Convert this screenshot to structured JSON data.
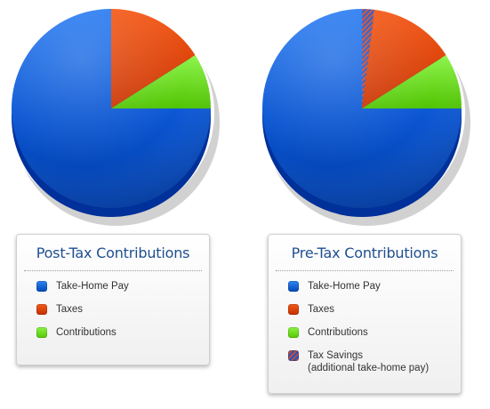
{
  "chart_data": [
    {
      "type": "pie",
      "title": "Post-Tax Contributions",
      "categories": [
        "Take-Home Pay",
        "Taxes",
        "Contributions"
      ],
      "values": [
        75,
        16,
        9
      ],
      "colors": [
        "#0a55d2",
        "#e04a10",
        "#6fe01a"
      ],
      "legend": "below"
    },
    {
      "type": "pie",
      "title": "Pre-Tax Contributions",
      "categories": [
        "Take-Home Pay",
        "Taxes",
        "Contributions",
        "Tax Savings"
      ],
      "legend_sub": "(additional take-home pay)",
      "values": [
        75,
        14,
        9,
        2
      ],
      "colors": [
        "#0a55d2",
        "#e04a10",
        "#6fe01a",
        "hatched blue/red"
      ],
      "legend": "below"
    }
  ]
}
